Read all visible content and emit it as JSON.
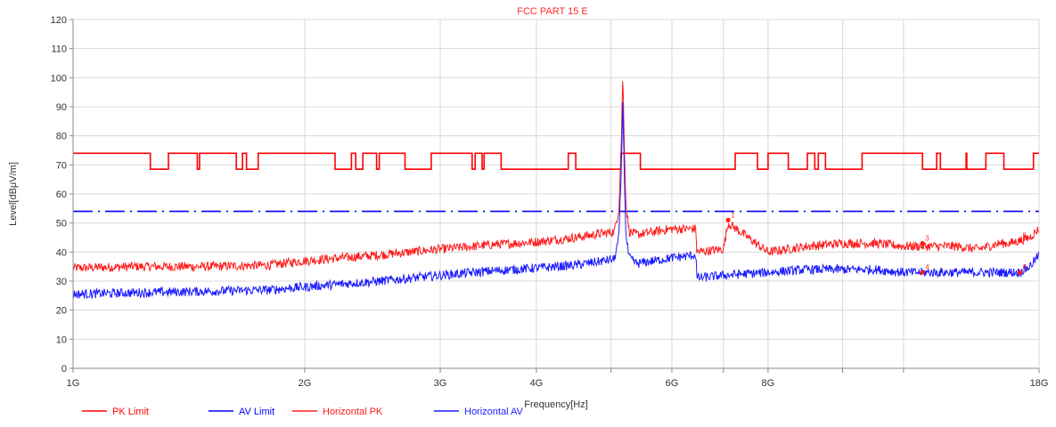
{
  "chart_data": {
    "type": "line",
    "title": "FCC PART 15 E",
    "xlabel": "Frequency[Hz]",
    "ylabel": "Level[dBμV/m]",
    "xscale": "log",
    "xlim": [
      1,
      18
    ],
    "ylim": [
      0,
      120
    ],
    "x_unit": "GHz",
    "y_ticks": [
      0,
      10,
      20,
      30,
      40,
      50,
      60,
      70,
      80,
      90,
      100,
      110,
      120
    ],
    "x_ticks": [
      {
        "value": 1,
        "label": "1G"
      },
      {
        "value": 2,
        "label": "2G"
      },
      {
        "value": 3,
        "label": "3G"
      },
      {
        "value": 4,
        "label": "4G"
      },
      {
        "value": 6,
        "label": "6G"
      },
      {
        "value": 8,
        "label": "8G"
      },
      {
        "value": 18,
        "label": "18G"
      }
    ],
    "minor_x_gridlines": [
      5,
      7,
      10,
      12
    ],
    "grid": true,
    "legend_position": "bottom-left",
    "colors": {
      "pk_limit": "#ff0000",
      "av_limit": "#0000ff",
      "horizontal_pk": "#ff1a1a",
      "horizontal_av": "#1a1aff",
      "grid": "#d8d8d8",
      "title": "#ff2a2a"
    },
    "series": [
      {
        "name": "PK Limit",
        "style": "solid",
        "x": [
          1.0,
          1.26,
          1.26,
          1.33,
          1.33,
          1.45,
          1.45,
          1.46,
          1.46,
          1.63,
          1.63,
          1.66,
          1.66,
          1.68,
          1.68,
          1.74,
          1.74,
          2.19,
          2.19,
          2.3,
          2.3,
          2.33,
          2.33,
          2.38,
          2.38,
          2.48,
          2.48,
          2.5,
          2.5,
          2.7,
          2.7,
          2.92,
          2.92,
          3.3,
          3.3,
          3.33,
          3.33,
          3.4,
          3.4,
          3.42,
          3.42,
          3.6,
          3.6,
          4.4,
          4.4,
          4.5,
          4.5,
          5.15,
          5.15,
          5.46,
          5.46,
          7.25,
          7.25,
          7.75,
          7.75,
          8.0,
          8.0,
          8.5,
          8.5,
          9.0,
          9.0,
          9.2,
          9.2,
          9.3,
          9.3,
          9.5,
          9.5,
          10.6,
          10.6,
          12.7,
          12.7,
          13.25,
          13.25,
          13.4,
          13.4,
          14.47,
          14.47,
          14.5,
          14.5,
          15.35,
          15.35,
          16.2,
          16.2,
          17.7,
          17.7,
          18.0
        ],
        "y": [
          74,
          74,
          68.5,
          68.5,
          74,
          74,
          68.5,
          68.5,
          74,
          74,
          68.5,
          68.5,
          74,
          74,
          68.5,
          68.5,
          74,
          74,
          68.5,
          68.5,
          74,
          74,
          68.5,
          68.5,
          74,
          74,
          68.5,
          68.5,
          74,
          74,
          68.5,
          68.5,
          74,
          74,
          68.5,
          68.5,
          74,
          74,
          68.5,
          68.5,
          74,
          74,
          68.5,
          68.5,
          74,
          74,
          68.5,
          68.5,
          74,
          74,
          68.5,
          68.5,
          74,
          74,
          68.5,
          68.5,
          74,
          74,
          68.5,
          68.5,
          74,
          74,
          68.5,
          68.5,
          74,
          74,
          68.5,
          68.5,
          74,
          74,
          68.5,
          68.5,
          74,
          74,
          68.5,
          68.5,
          74,
          74,
          68.5,
          68.5,
          74,
          74,
          68.5,
          68.5,
          74,
          74
        ]
      },
      {
        "name": "AV Limit",
        "style": "dashed",
        "x": [
          1.0,
          1.26,
          1.33,
          1.74,
          2.19,
          2.7,
          2.92,
          3.3,
          3.42,
          4.4,
          4.5,
          5.15,
          7.25,
          7.75,
          8.5,
          9.0,
          9.5,
          10.6,
          12.7,
          13.4,
          14.5,
          16.2,
          17.7,
          18.0
        ],
        "y": [
          54,
          54,
          54,
          54,
          54,
          54,
          54,
          54,
          54,
          54,
          54,
          54,
          54,
          54,
          54,
          54,
          54,
          54,
          54,
          54,
          54,
          54,
          54,
          54
        ]
      },
      {
        "name": "Horizontal PK",
        "style": "noisy",
        "x": [
          1.0,
          1.2,
          1.5,
          1.8,
          2.0,
          2.5,
          3.0,
          3.5,
          4.0,
          4.5,
          4.9,
          5.05,
          5.12,
          5.16,
          5.18,
          5.2,
          5.23,
          5.28,
          5.4,
          6.0,
          6.45,
          6.46,
          7.0,
          7.1,
          8.0,
          9.0,
          10.0,
          11.0,
          12.0,
          13.0,
          14.0,
          15.0,
          16.0,
          16.5,
          17.0,
          17.5,
          18.0
        ],
        "y": [
          34.5,
          35,
          35,
          35.5,
          37,
          39,
          41,
          42.5,
          43.5,
          45,
          46.5,
          47,
          55,
          80,
          102,
          80,
          56,
          47,
          46,
          48,
          48,
          40,
          41,
          50,
          40,
          42,
          43,
          43,
          42,
          42,
          42,
          41,
          43,
          43,
          44,
          45,
          48
        ]
      },
      {
        "name": "Horizontal AV",
        "style": "noisy",
        "x": [
          1.0,
          1.2,
          1.5,
          1.8,
          2.0,
          2.5,
          3.0,
          3.5,
          4.0,
          4.5,
          4.9,
          5.05,
          5.12,
          5.16,
          5.18,
          5.2,
          5.23,
          5.28,
          5.4,
          6.0,
          6.45,
          6.46,
          7.0,
          8.0,
          9.0,
          10.0,
          11.0,
          12.0,
          13.0,
          14.0,
          15.0,
          16.0,
          17.0,
          17.5,
          18.0
        ],
        "y": [
          25.5,
          26,
          26.5,
          27,
          28,
          30,
          32,
          33.5,
          34.5,
          35.5,
          37,
          37.5,
          45,
          70,
          94,
          70,
          45,
          38,
          36,
          38,
          39,
          31,
          32,
          33,
          34,
          34,
          34,
          33,
          33,
          33,
          33,
          33,
          33,
          35,
          39
        ]
      }
    ],
    "markers": [
      {
        "label": "1",
        "x": 7.1,
        "y": 51
      },
      {
        "label": "3",
        "x": 12.7,
        "y": 43
      },
      {
        "label": "4",
        "x": 12.7,
        "y": 33
      },
      {
        "label": "5",
        "x": 17.0,
        "y": 44
      },
      {
        "label": "6",
        "x": 17.0,
        "y": 33
      }
    ]
  }
}
